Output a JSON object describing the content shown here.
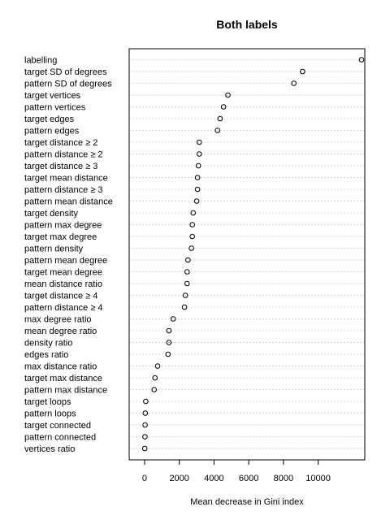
{
  "chart_data": {
    "type": "scatter",
    "title": "Both labels",
    "xlabel": "Mean decrease in Gini index",
    "ylabel": "",
    "xlim": [
      -700,
      12500
    ],
    "xticks": [
      0,
      2000,
      4000,
      6000,
      8000,
      10000
    ],
    "grid": "dotted horizontal",
    "categories": [
      "labelling",
      "target SD of degrees",
      "pattern SD of degrees",
      "target vertices",
      "pattern vertices",
      "target edges",
      "pattern edges",
      "target distance ≥ 2",
      "pattern distance ≥ 2",
      "target distance ≥ 3",
      "target mean distance",
      "pattern distance ≥ 3",
      "pattern mean distance",
      "target density",
      "pattern max degree",
      "target max degree",
      "pattern density",
      "pattern mean degree",
      "target mean degree",
      "mean distance ratio",
      "target distance ≥ 4",
      "pattern distance ≥ 4",
      "max degree ratio",
      "mean degree ratio",
      "density ratio",
      "edges ratio",
      "max distance ratio",
      "target max distance",
      "pattern max distance",
      "target loops",
      "pattern loops",
      "target connected",
      "pattern connected",
      "vertices ratio"
    ],
    "values": [
      12500,
      9100,
      8600,
      4800,
      4550,
      4350,
      4200,
      3150,
      3150,
      3100,
      3050,
      3050,
      3000,
      2800,
      2750,
      2750,
      2700,
      2500,
      2450,
      2450,
      2350,
      2300,
      1650,
      1400,
      1400,
      1350,
      750,
      600,
      550,
      70,
      40,
      30,
      20,
      10
    ]
  }
}
